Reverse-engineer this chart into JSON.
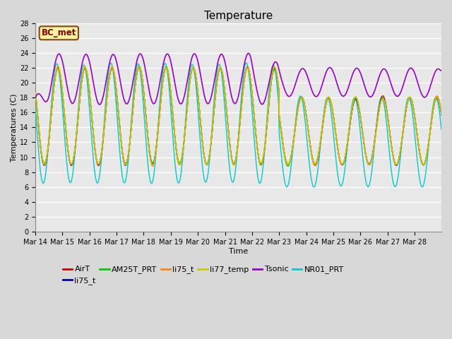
{
  "title": "Temperature",
  "xlabel": "Time",
  "ylabel": "Temperatures (C)",
  "ylim": [
    0,
    28
  ],
  "yticks": [
    0,
    2,
    4,
    6,
    8,
    10,
    12,
    14,
    16,
    18,
    20,
    22,
    24,
    26,
    28
  ],
  "num_points": 1500,
  "total_days": 15,
  "series": {
    "AirT": {
      "color": "#cc0000",
      "lw": 1.0,
      "zorder": 5
    },
    "li75_t": {
      "color": "#000099",
      "lw": 1.0,
      "zorder": 4
    },
    "AM25T_PRT": {
      "color": "#00cc00",
      "lw": 1.0,
      "zorder": 6
    },
    "li75_t2": {
      "color": "#ff8800",
      "lw": 1.0,
      "zorder": 7
    },
    "li77_temp": {
      "color": "#cccc00",
      "lw": 1.0,
      "zorder": 8
    },
    "Tsonic": {
      "color": "#9900cc",
      "lw": 1.2,
      "zorder": 9
    },
    "NR01_PRT": {
      "color": "#00cccc",
      "lw": 1.0,
      "zorder": 3
    }
  },
  "legend_row1": [
    {
      "label": "AirT",
      "color": "#cc0000"
    },
    {
      "label": "li75_t",
      "color": "#000099"
    },
    {
      "label": "AM25T_PRT",
      "color": "#00cc00"
    },
    {
      "label": "li75_t",
      "color": "#ff8800"
    },
    {
      "label": "li77_temp",
      "color": "#cccc00"
    },
    {
      "label": "Tsonic",
      "color": "#9900cc"
    }
  ],
  "legend_row2": [
    {
      "label": "NR01_PRT",
      "color": "#00cccc"
    }
  ],
  "annotation_text": "BC_met",
  "annotation_color": "#8b0000",
  "annotation_bg": "#f5f5a0",
  "annotation_border": "#8b4513",
  "bg_color": "#d8d8d8",
  "plot_bg": "#e8e8e8",
  "grid_color": "#ffffff",
  "title_fontsize": 11,
  "tick_fontsize": 7,
  "label_fontsize": 8,
  "legend_fontsize": 8
}
